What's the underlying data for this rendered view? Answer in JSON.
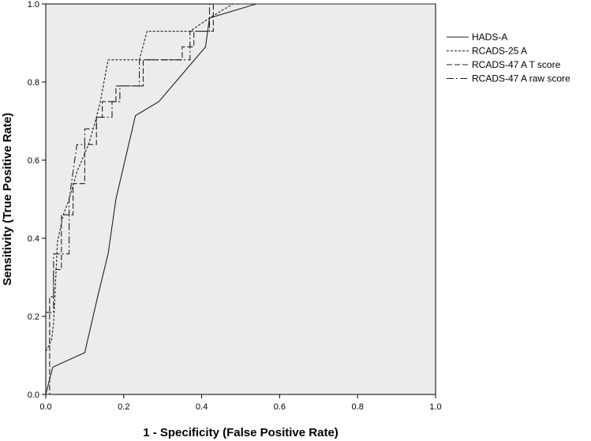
{
  "chart_data": {
    "type": "line",
    "title": "",
    "xlabel": "1 - Specificity (False Positive Rate)",
    "ylabel": "Sensitivity (True Positive Rate)",
    "xlim": [
      0,
      1
    ],
    "ylim": [
      0,
      1
    ],
    "x_ticks": [
      "0.0",
      "0.2",
      "0.4",
      "0.6",
      "0.8",
      "1.0"
    ],
    "y_ticks": [
      "0.0",
      "0.2",
      "0.4",
      "0.6",
      "0.8",
      "1.0"
    ],
    "grid": false,
    "legend_position": "right",
    "plot_background": "#ececec",
    "series": [
      {
        "name": "HADS-A",
        "dash": "solid",
        "x": [
          0,
          0.018,
          0.1,
          0.133,
          0.16,
          0.18,
          0.23,
          0.29,
          0.35,
          0.41,
          0.42,
          0.54,
          1.0
        ],
        "y": [
          0,
          0.07,
          0.107,
          0.25,
          0.36,
          0.5,
          0.714,
          0.75,
          0.82,
          0.89,
          0.964,
          1.0,
          1.0
        ]
      },
      {
        "name": "RCADS-25 A",
        "dash": "short",
        "x": [
          0,
          0.0,
          0.015,
          0.02,
          0.03,
          0.045,
          0.06,
          0.08,
          0.11,
          0.13,
          0.14,
          0.16,
          0.18,
          0.24,
          0.26,
          0.37,
          0.42,
          0.48,
          1.0
        ],
        "y": [
          0,
          0.11,
          0.14,
          0.18,
          0.39,
          0.46,
          0.5,
          0.57,
          0.64,
          0.71,
          0.75,
          0.857,
          0.857,
          0.857,
          0.93,
          0.93,
          0.964,
          1.0,
          1.0
        ]
      },
      {
        "name": "RCADS-47 A T score",
        "dash": "long",
        "x": [
          0,
          0.01,
          0.01,
          0.02,
          0.02,
          0.04,
          0.04,
          0.07,
          0.07,
          0.1,
          0.1,
          0.13,
          0.13,
          0.145,
          0.145,
          0.18,
          0.18,
          0.25,
          0.25,
          0.35,
          0.35,
          0.38,
          0.38,
          0.43,
          0.43,
          1.0
        ],
        "y": [
          0,
          0,
          0.25,
          0.25,
          0.32,
          0.32,
          0.46,
          0.46,
          0.54,
          0.54,
          0.64,
          0.64,
          0.71,
          0.71,
          0.75,
          0.75,
          0.79,
          0.79,
          0.857,
          0.857,
          0.89,
          0.89,
          0.93,
          0.93,
          1.0,
          1.0
        ]
      },
      {
        "name": "RCADS-47 A raw score",
        "dash": "dashdot",
        "x": [
          0,
          0.0,
          0.02,
          0.02,
          0.06,
          0.06,
          0.08,
          0.1,
          0.1,
          0.13,
          0.13,
          0.17,
          0.17,
          0.19,
          0.19,
          0.24,
          0.24,
          0.37,
          0.37,
          0.42,
          0.42,
          1.0
        ],
        "y": [
          0,
          0.21,
          0.21,
          0.36,
          0.36,
          0.5,
          0.64,
          0.64,
          0.68,
          0.68,
          0.71,
          0.71,
          0.75,
          0.75,
          0.79,
          0.79,
          0.857,
          0.857,
          0.93,
          0.93,
          1.0,
          1.0
        ]
      }
    ]
  }
}
